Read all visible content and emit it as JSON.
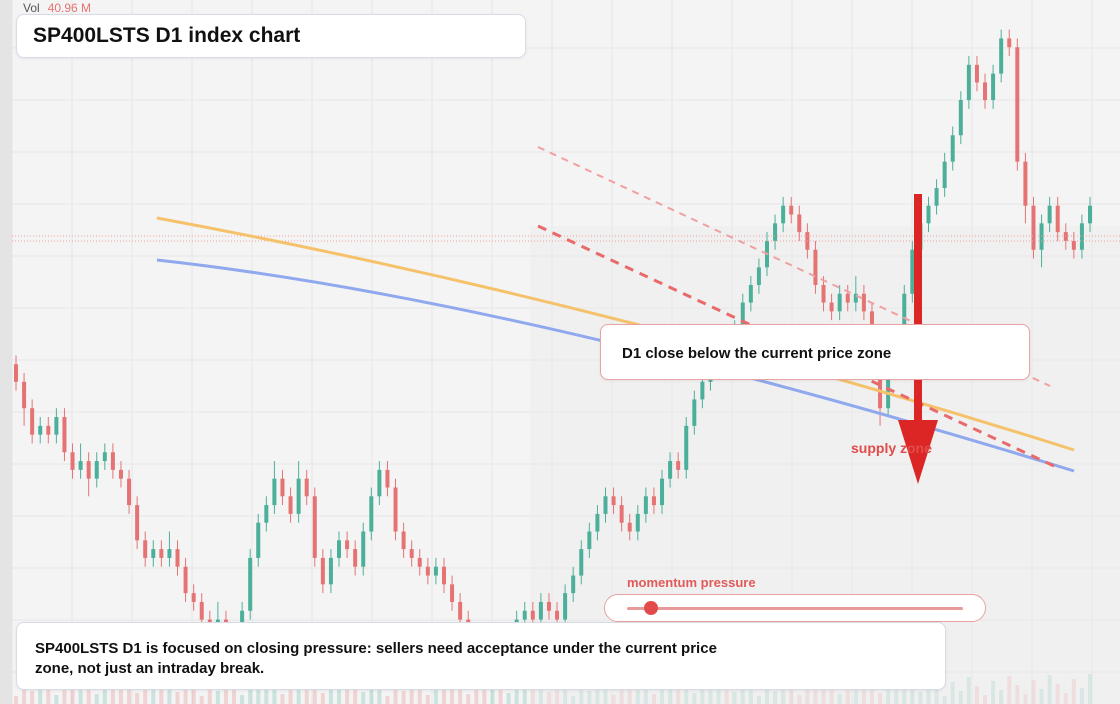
{
  "header": {
    "title": "SP400LSTS D1 index chart",
    "vol_label": "Vol",
    "vol_value": "40.96 M"
  },
  "annotations": {
    "zone_note": "D1 close below the current price zone",
    "supply_label": "supply zone",
    "summary": "SP400LSTS D1 is focused on closing pressure: sellers need acceptance under the current price zone, not just an intraday break."
  },
  "momentum": {
    "label": "momentum pressure",
    "level": 0.07
  },
  "colors": {
    "up": "#4caf9a",
    "down": "#e57373",
    "orange_line": "#f5c26b",
    "blue_line": "#8fa8ee",
    "resistance": "#e86a6a",
    "arrow": "#dc2626"
  },
  "chart_data": {
    "type": "candlestick",
    "title": "SP400LSTS D1 index chart",
    "series_note": "daily OHLC; prices in relative chart units",
    "ohlc": [
      [
        62,
        60,
        63,
        59
      ],
      [
        60,
        57,
        61,
        55
      ],
      [
        57,
        54,
        58,
        53
      ],
      [
        54,
        55,
        56,
        53
      ],
      [
        55,
        54,
        56,
        53
      ],
      [
        54,
        56,
        57,
        53
      ],
      [
        56,
        52,
        57,
        51
      ],
      [
        52,
        50,
        53,
        49
      ],
      [
        50,
        51,
        53,
        49
      ],
      [
        51,
        49,
        52,
        47
      ],
      [
        49,
        51,
        52,
        48
      ],
      [
        51,
        52,
        53,
        50
      ],
      [
        52,
        50,
        53,
        49
      ],
      [
        50,
        49,
        51,
        48
      ],
      [
        49,
        46,
        50,
        45
      ],
      [
        46,
        42,
        47,
        41
      ],
      [
        42,
        40,
        43,
        39
      ],
      [
        40,
        41,
        42,
        39
      ],
      [
        41,
        40,
        42,
        39
      ],
      [
        40,
        41,
        43,
        39
      ],
      [
        41,
        39,
        42,
        38
      ],
      [
        39,
        36,
        40,
        35
      ],
      [
        36,
        35,
        37,
        34
      ],
      [
        35,
        33,
        36,
        32
      ],
      [
        33,
        32,
        34,
        31
      ],
      [
        32,
        33,
        35,
        31
      ],
      [
        33,
        31,
        34,
        30
      ],
      [
        31,
        30,
        32,
        29
      ],
      [
        30,
        34,
        35,
        29
      ],
      [
        34,
        40,
        41,
        33
      ],
      [
        40,
        44,
        45,
        39
      ],
      [
        44,
        46,
        47,
        43
      ],
      [
        46,
        49,
        51,
        45
      ],
      [
        49,
        47,
        50,
        46
      ],
      [
        47,
        45,
        48,
        44
      ],
      [
        45,
        49,
        51,
        44
      ],
      [
        49,
        47,
        50,
        46
      ],
      [
        47,
        40,
        48,
        39
      ],
      [
        40,
        37,
        41,
        36
      ],
      [
        37,
        40,
        41,
        36
      ],
      [
        40,
        42,
        43,
        39
      ],
      [
        42,
        41,
        43,
        40
      ],
      [
        41,
        39,
        42,
        38
      ],
      [
        39,
        43,
        44,
        38
      ],
      [
        43,
        47,
        48,
        42
      ],
      [
        47,
        50,
        51,
        46
      ],
      [
        50,
        48,
        51,
        47
      ],
      [
        48,
        43,
        49,
        42
      ],
      [
        43,
        41,
        44,
        40
      ],
      [
        41,
        40,
        42,
        39
      ],
      [
        40,
        39,
        41,
        38
      ],
      [
        39,
        38,
        40,
        37
      ],
      [
        38,
        39,
        40,
        37
      ],
      [
        39,
        37,
        40,
        36
      ],
      [
        37,
        35,
        38,
        34
      ],
      [
        35,
        33,
        36,
        32
      ],
      [
        33,
        31,
        34,
        30
      ],
      [
        31,
        30,
        32,
        29
      ],
      [
        30,
        29,
        31,
        28
      ],
      [
        29,
        30,
        31,
        28
      ],
      [
        30,
        29,
        31,
        28
      ],
      [
        29,
        31,
        32,
        28
      ],
      [
        31,
        33,
        34,
        30
      ],
      [
        33,
        34,
        35,
        32
      ],
      [
        34,
        33,
        35,
        32
      ],
      [
        33,
        35,
        36,
        32
      ],
      [
        35,
        34,
        36,
        33
      ],
      [
        34,
        33,
        35,
        32
      ],
      [
        33,
        36,
        37,
        32
      ],
      [
        36,
        38,
        39,
        35
      ],
      [
        38,
        41,
        42,
        37
      ],
      [
        41,
        43,
        44,
        40
      ],
      [
        43,
        45,
        46,
        42
      ],
      [
        45,
        47,
        48,
        44
      ],
      [
        47,
        46,
        48,
        45
      ],
      [
        46,
        44,
        47,
        43
      ],
      [
        44,
        43,
        45,
        42
      ],
      [
        43,
        45,
        46,
        42
      ],
      [
        45,
        47,
        48,
        44
      ],
      [
        47,
        46,
        48,
        45
      ],
      [
        46,
        49,
        50,
        45
      ],
      [
        49,
        51,
        52,
        48
      ],
      [
        51,
        50,
        52,
        49
      ],
      [
        50,
        55,
        56,
        49
      ],
      [
        55,
        58,
        59,
        54
      ],
      [
        58,
        60,
        61,
        57
      ],
      [
        60,
        63,
        64,
        59
      ],
      [
        63,
        65,
        66,
        62
      ],
      [
        65,
        64,
        66,
        63
      ],
      [
        64,
        66,
        67,
        63
      ],
      [
        66,
        69,
        70,
        65
      ],
      [
        69,
        71,
        72,
        68
      ],
      [
        71,
        73,
        74,
        70
      ],
      [
        73,
        76,
        77,
        72
      ],
      [
        76,
        78,
        79,
        75
      ],
      [
        78,
        80,
        81,
        77
      ],
      [
        80,
        79,
        81,
        78
      ],
      [
        79,
        77,
        80,
        76
      ],
      [
        77,
        75,
        78,
        74
      ],
      [
        75,
        71,
        76,
        70
      ],
      [
        71,
        69,
        72,
        68
      ],
      [
        69,
        68,
        70,
        67
      ],
      [
        68,
        70,
        71,
        67
      ],
      [
        70,
        69,
        71,
        68
      ],
      [
        69,
        70,
        72,
        68
      ],
      [
        70,
        68,
        71,
        67
      ],
      [
        68,
        64,
        69,
        62
      ],
      [
        64,
        57,
        65,
        55
      ],
      [
        57,
        62,
        63,
        56
      ],
      [
        62,
        65,
        66,
        61
      ],
      [
        65,
        70,
        71,
        64
      ],
      [
        70,
        75,
        76,
        69
      ],
      [
        75,
        78,
        79,
        74
      ],
      [
        78,
        80,
        81,
        77
      ],
      [
        80,
        82,
        83,
        79
      ],
      [
        82,
        85,
        86,
        81
      ],
      [
        85,
        88,
        89,
        84
      ],
      [
        88,
        92,
        93,
        87
      ],
      [
        92,
        96,
        97,
        91
      ],
      [
        96,
        94,
        97,
        93
      ],
      [
        94,
        92,
        95,
        91
      ],
      [
        92,
        95,
        96,
        91
      ],
      [
        95,
        99,
        100,
        94
      ],
      [
        99,
        98,
        100,
        97
      ],
      [
        98,
        85,
        99,
        84
      ],
      [
        85,
        80,
        86,
        78
      ],
      [
        80,
        75,
        81,
        74
      ],
      [
        75,
        78,
        79,
        73
      ],
      [
        78,
        80,
        81,
        77
      ],
      [
        80,
        77,
        81,
        76
      ],
      [
        77,
        76,
        78,
        75
      ],
      [
        76,
        75,
        77,
        74
      ],
      [
        75,
        78,
        79,
        74
      ],
      [
        78,
        80,
        81,
        77
      ]
    ],
    "volume_note": "volume bars shown faintly at the bottom",
    "lines": [
      {
        "name": "orange trend line"
      },
      {
        "name": "blue trend line"
      },
      {
        "name": "dashed resistance"
      },
      {
        "name": "dashed resistance (faint)"
      }
    ],
    "grid": true
  }
}
